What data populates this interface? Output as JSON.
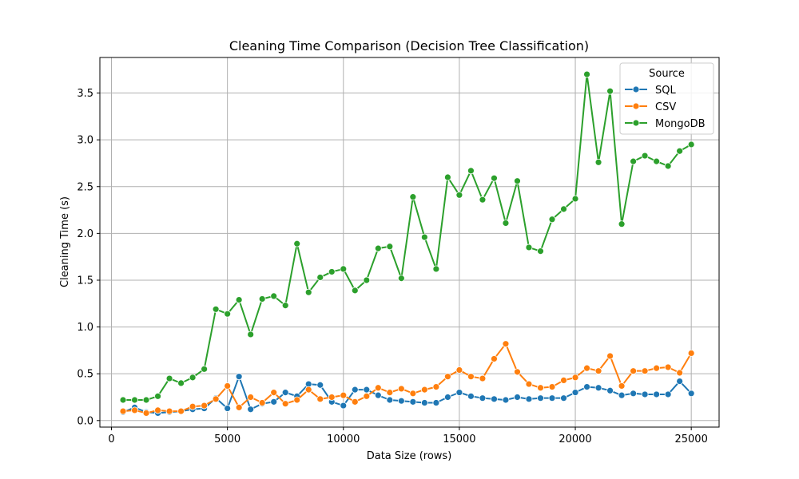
{
  "chart_data": {
    "type": "line",
    "title": "Cleaning Time Comparison (Decision Tree Classification)",
    "xlabel": "Data Size (rows)",
    "ylabel": "Cleaning Time (s)",
    "xlim": [
      -500,
      26200
    ],
    "ylim": [
      -0.07,
      3.88
    ],
    "xticks": [
      0,
      5000,
      10000,
      15000,
      20000,
      25000
    ],
    "xtick_labels": [
      "0",
      "5000",
      "10000",
      "15000",
      "20000",
      "25000"
    ],
    "yticks": [
      0.0,
      0.5,
      1.0,
      1.5,
      2.0,
      2.5,
      3.0,
      3.5
    ],
    "ytick_labels": [
      "0.0",
      "0.5",
      "1.0",
      "1.5",
      "2.0",
      "2.5",
      "3.0",
      "3.5"
    ],
    "grid": true,
    "legend": {
      "title": "Source",
      "position": "top-right"
    },
    "x": [
      500,
      1000,
      1500,
      2000,
      2500,
      3000,
      3500,
      4000,
      4500,
      5000,
      5500,
      6000,
      6500,
      7000,
      7500,
      8000,
      8500,
      9000,
      9500,
      10000,
      10500,
      11000,
      11500,
      12000,
      12500,
      13000,
      13500,
      14000,
      14500,
      15000,
      15500,
      16000,
      16500,
      17000,
      17500,
      18000,
      18500,
      19000,
      19500,
      20000,
      20500,
      21000,
      21500,
      22000,
      22500,
      23000,
      23500,
      24000,
      24500,
      25000
    ],
    "series": [
      {
        "name": "SQL",
        "color": "#1f77b4",
        "values": [
          0.09,
          0.14,
          0.09,
          0.08,
          0.09,
          0.1,
          0.12,
          0.13,
          0.24,
          0.13,
          0.47,
          0.12,
          0.18,
          0.2,
          0.3,
          0.26,
          0.39,
          0.38,
          0.2,
          0.16,
          0.33,
          0.33,
          0.27,
          0.22,
          0.21,
          0.2,
          0.19,
          0.19,
          0.25,
          0.3,
          0.26,
          0.24,
          0.23,
          0.22,
          0.25,
          0.23,
          0.24,
          0.24,
          0.24,
          0.3,
          0.36,
          0.35,
          0.32,
          0.27,
          0.29,
          0.28,
          0.28,
          0.28,
          0.42,
          0.29
        ]
      },
      {
        "name": "CSV",
        "color": "#ff7f0e",
        "values": [
          0.1,
          0.11,
          0.08,
          0.11,
          0.1,
          0.1,
          0.15,
          0.16,
          0.23,
          0.37,
          0.14,
          0.25,
          0.19,
          0.3,
          0.18,
          0.22,
          0.33,
          0.23,
          0.25,
          0.27,
          0.2,
          0.26,
          0.35,
          0.3,
          0.34,
          0.29,
          0.33,
          0.36,
          0.47,
          0.54,
          0.47,
          0.45,
          0.66,
          0.82,
          0.52,
          0.39,
          0.35,
          0.36,
          0.43,
          0.46,
          0.56,
          0.53,
          0.69,
          0.37,
          0.53,
          0.53,
          0.56,
          0.57,
          0.51,
          0.72
        ]
      },
      {
        "name": "MongoDB",
        "color": "#2ca02c",
        "values": [
          0.22,
          0.22,
          0.22,
          0.26,
          0.45,
          0.4,
          0.46,
          0.55,
          1.19,
          1.14,
          1.29,
          0.92,
          1.3,
          1.33,
          1.23,
          1.89,
          1.37,
          1.53,
          1.59,
          1.62,
          1.39,
          1.5,
          1.84,
          1.86,
          1.52,
          2.39,
          1.96,
          1.62,
          2.6,
          2.41,
          2.67,
          2.36,
          2.59,
          2.11,
          2.56,
          1.85,
          1.81,
          2.15,
          2.26,
          2.37,
          3.7,
          2.76,
          3.52,
          2.1,
          2.77,
          2.83,
          2.77,
          2.72,
          2.88,
          2.95
        ]
      }
    ]
  }
}
